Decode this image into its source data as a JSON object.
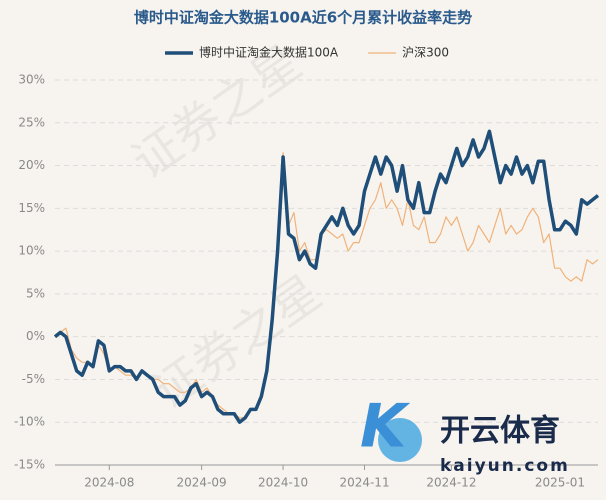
{
  "chart_data": {
    "type": "line",
    "title": "博时中证淘金大数据100A近6个月累计收益率走势",
    "watermark": "证券之星",
    "logo_text": "开云体育",
    "logo_url": "kaiyun.com",
    "categories": [
      null,
      null,
      null,
      null,
      null,
      null,
      null,
      null,
      null,
      null,
      "2024-08",
      null,
      null,
      null,
      null,
      null,
      null,
      null,
      null,
      null,
      null,
      null,
      null,
      null,
      null,
      null,
      null,
      "2024-09",
      null,
      null,
      null,
      null,
      null,
      null,
      null,
      null,
      null,
      null,
      null,
      null,
      null,
      null,
      "2024-10",
      null,
      null,
      null,
      null,
      null,
      null,
      null,
      null,
      null,
      null,
      null,
      null,
      null,
      null,
      "2024-11",
      null,
      null,
      null,
      null,
      null,
      null,
      null,
      null,
      null,
      null,
      null,
      null,
      null,
      null,
      null,
      "2024-12",
      null,
      null,
      null,
      null,
      null,
      null,
      null,
      null,
      null,
      null,
      null,
      null,
      null,
      null,
      null,
      null,
      null,
      null,
      null,
      "2025-01",
      null,
      null,
      null,
      null,
      null,
      null,
      null
    ],
    "series": [
      {
        "name": "博时中证淘金大数据100A",
        "color": "#1f4e79",
        "width": 3.5,
        "values": [
          0,
          0.5,
          0,
          -2,
          -4,
          -4.5,
          -3,
          -3.5,
          -0.5,
          -1,
          -4,
          -3.5,
          -3.5,
          -4,
          -4,
          -5,
          -4,
          -4.5,
          -5,
          -6.5,
          -7,
          -7,
          -7,
          -8,
          -7.5,
          -6,
          -5.5,
          -7,
          -6.5,
          -7,
          -8.5,
          -9,
          -9,
          -9,
          -10,
          -9.5,
          -8.5,
          -8.5,
          -7,
          -4,
          2,
          10,
          21,
          12,
          11.5,
          9,
          10,
          8.5,
          8,
          12,
          13,
          14,
          13,
          15,
          13,
          12,
          13,
          17,
          19,
          21,
          19,
          21,
          20,
          17,
          20,
          16,
          15,
          18,
          14.5,
          14.5,
          17,
          19,
          18,
          20,
          22,
          20,
          21,
          23,
          21,
          22,
          24,
          21,
          18,
          20,
          19,
          21,
          19,
          20,
          18,
          20.5,
          20.5,
          16,
          12.5,
          12.5,
          13.5,
          13,
          12,
          16,
          15.5,
          16,
          16.5
        ]
      },
      {
        "name": "沪深300",
        "color": "#f0b27a",
        "width": 1.2,
        "values": [
          0,
          0.5,
          1,
          -1.5,
          -2.5,
          -3,
          -3,
          -3.5,
          -1,
          -2,
          -4,
          -3.5,
          -4,
          -4.5,
          -4.5,
          -5,
          -4,
          -4.5,
          -5,
          -5,
          -5.5,
          -5.5,
          -6,
          -6.5,
          -6.5,
          -6,
          -5,
          -6.5,
          -6,
          -7,
          -8,
          -8.5,
          -9,
          -9,
          -9.5,
          -9.5,
          -8.5,
          -8.5,
          -7,
          -4,
          2,
          11,
          21.5,
          13,
          14.5,
          10,
          11,
          9,
          9,
          12,
          12.5,
          12,
          11.5,
          12,
          10,
          11,
          11,
          13,
          15,
          16,
          18,
          15,
          16,
          15,
          13,
          16,
          13,
          12.5,
          14,
          11,
          11,
          12,
          14,
          13,
          14,
          12,
          10,
          11,
          13,
          12,
          11,
          13,
          15,
          12,
          13,
          12,
          12.5,
          14,
          15,
          14,
          11,
          12,
          8,
          8,
          7,
          6.5,
          7,
          6.5,
          9,
          8.5,
          9
        ]
      }
    ],
    "ylim": [
      -15,
      30
    ],
    "yticks": [
      {
        "value": -15,
        "label": "-15%"
      },
      {
        "value": -10,
        "label": "-10%"
      },
      {
        "value": -5,
        "label": "-5%"
      },
      {
        "value": 0,
        "label": "0%"
      },
      {
        "value": 5,
        "label": "5%"
      },
      {
        "value": 10,
        "label": "10%"
      },
      {
        "value": 15,
        "label": "15%"
      },
      {
        "value": 20,
        "label": "20%"
      },
      {
        "value": 25,
        "label": "25%"
      },
      {
        "value": 30,
        "label": "30%"
      }
    ],
    "grid": true,
    "legend": "top"
  }
}
